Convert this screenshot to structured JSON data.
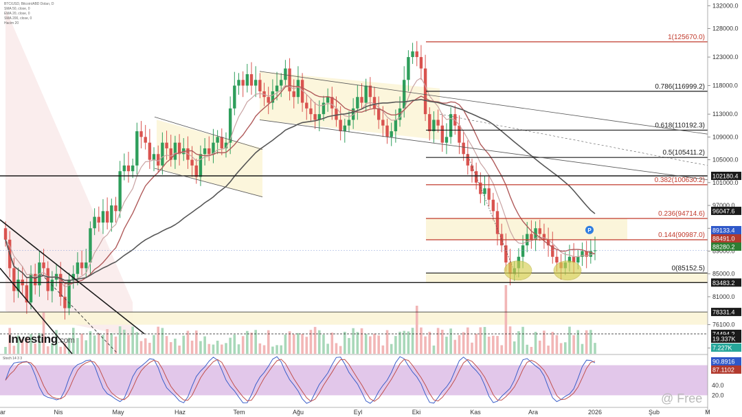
{
  "chart_data": {
    "type": "candlestick",
    "symbol_header": "BTC/USD, Bitcoin/ABD Doları, D",
    "indicator_legend": [
      "SMA 50, close, 0",
      "EMA 20, close, 0",
      "SMA 200, close, 0",
      "Hacim 20"
    ],
    "stoch_label": "Stoch 14 3 3",
    "ylim": [
      71000,
      133000
    ],
    "y_ticks": [
      132000.0,
      128000.0,
      123000.0,
      118000.0,
      113000.0,
      109000.0,
      105000.0,
      101000.0,
      97000.0,
      93000.0,
      89000.0,
      85000.0,
      81000.0,
      76100.0,
      72000.0
    ],
    "x_ticks": [
      "Nis",
      "May",
      "Haz",
      "Tem",
      "Ağu",
      "Eyl",
      "Eki",
      "Kas",
      "Ara",
      "2026",
      "Şub",
      "M"
    ],
    "x_tick_prefix": "ar",
    "fibonacci": [
      {
        "label": "1(125670.0)",
        "value": 125670.0,
        "color": "#c0392b"
      },
      {
        "label": "0.786(116999.2)",
        "value": 116999.2,
        "color": "#1a1a1a"
      },
      {
        "label": "0.618(110192.3)",
        "value": 110192.3,
        "color": "#1a1a1a"
      },
      {
        "label": "0.5(105411.2)",
        "value": 105411.2,
        "color": "#1a1a1a"
      },
      {
        "label": "0.382(100630.2)",
        "value": 100630.2,
        "color": "#c0392b"
      },
      {
        "label": "0.236(94714.6)",
        "value": 94714.6,
        "color": "#c0392b"
      },
      {
        "label": "0.144(90987.0)",
        "value": 90987.0,
        "color": "#c0392b"
      },
      {
        "label": "0(85152.5)",
        "value": 85152.5,
        "color": "#1a1a1a"
      }
    ],
    "horizontal_levels": [
      102180.4,
      83483.2,
      78331.4,
      74494.2
    ],
    "price_tags": [
      {
        "text": "102180.4",
        "value": 102180.4,
        "bg": "#1a1a1a",
        "fg": "#ffffff"
      },
      {
        "text": "96047.6",
        "value": 96047.6,
        "bg": "#1a1a1a",
        "fg": "#ffffff"
      },
      {
        "text": "89133.4",
        "value": 89133.4,
        "bg": "#2f58c9",
        "fg": "#ffffff"
      },
      {
        "text": "88491.0",
        "value": 88491.0,
        "bg": "#b23a2e",
        "fg": "#ffffff"
      },
      {
        "text": "88280.2",
        "value": 88280.2,
        "bg": "#2e7d32",
        "fg": "#ffffff"
      },
      {
        "text": "83483.2",
        "value": 83483.2,
        "bg": "#1a1a1a",
        "fg": "#ffffff"
      },
      {
        "text": "78331.4",
        "value": 78331.4,
        "bg": "#1a1a1a",
        "fg": "#ffffff"
      },
      {
        "text": "74494.2",
        "value": 74494.2,
        "bg": "#1a1a1a",
        "fg": "#ffffff"
      }
    ],
    "volume_tags": [
      {
        "text": "19.337K",
        "bg": "#1a1a1a",
        "fg": "#ffffff"
      },
      {
        "text": "7.227K",
        "bg": "#26a69a",
        "fg": "#ffffff"
      }
    ],
    "stoch_tags": [
      {
        "text": "90.8916",
        "value": 90.8916,
        "bg": "#2f58c9",
        "fg": "#ffffff"
      },
      {
        "text": "87.1102",
        "value": 87.1102,
        "bg": "#b23a2e",
        "fg": "#ffffff"
      }
    ],
    "stoch_ticks": [
      40.0,
      20.0
    ],
    "stoch_band": [
      20,
      80
    ],
    "candles_close_approx": [
      91000,
      86000,
      82000,
      84000,
      83000,
      80000,
      85000,
      83000,
      87000,
      86000,
      82000,
      84000,
      85000,
      81000,
      79000,
      84000,
      85000,
      87000,
      86000,
      87000,
      93000,
      95000,
      94000,
      96000,
      94000,
      97000,
      96000,
      103000,
      104000,
      103000,
      104000,
      110000,
      109000,
      108000,
      105000,
      106000,
      104000,
      108000,
      107000,
      105000,
      108000,
      106000,
      107000,
      105000,
      104000,
      102000,
      106000,
      107000,
      106000,
      108000,
      109000,
      107000,
      108000,
      114000,
      118000,
      119000,
      118000,
      120000,
      118000,
      119000,
      117000,
      116000,
      115000,
      117000,
      118000,
      119000,
      121000,
      117000,
      116000,
      119000,
      115000,
      114000,
      113000,
      112000,
      113000,
      115000,
      116000,
      114000,
      112000,
      110000,
      111000,
      112000,
      114000,
      116000,
      115000,
      118000,
      116000,
      114000,
      112000,
      111000,
      109000,
      110000,
      112000,
      114000,
      119000,
      123000,
      124000,
      123000,
      121000,
      113000,
      110000,
      112000,
      111000,
      108000,
      109000,
      113000,
      111000,
      108000,
      106000,
      104000,
      103000,
      101000,
      99000,
      100000,
      98000,
      96000,
      92000,
      90000,
      87000,
      85000,
      86000,
      88000,
      90000,
      92000,
      91000,
      93000,
      92000,
      91000,
      90000,
      88000,
      87000,
      86000,
      87000,
      88000,
      87000,
      88000,
      89000,
      88000,
      89000,
      89133
    ],
    "ellipse_highlights": 2
  }
}
